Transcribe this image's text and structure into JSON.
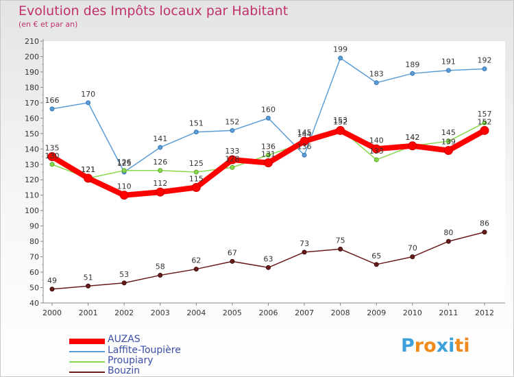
{
  "title": "Evolution des Impôts locaux par Habitant",
  "subtitle": "(en € et par an)",
  "logo": {
    "text": "Proxiti",
    "letter_colors": [
      "#3da0d8",
      "#f08a1c",
      "#f08a1c",
      "#3da0d8",
      "#3da0d8",
      "#f08a1c",
      "#f08a1c"
    ]
  },
  "chart_data": {
    "type": "line",
    "title": "Evolution des Impôts locaux par Habitant",
    "subtitle": "(en € et par an)",
    "xlabel": "",
    "ylabel": "",
    "x": [
      "2000",
      "2001",
      "2002",
      "2003",
      "2004",
      "2005",
      "2006",
      "2007",
      "2008",
      "2009",
      "2010",
      "2011",
      "2012"
    ],
    "ylim": [
      40,
      210
    ],
    "ytick_step": 10,
    "grid": false,
    "legend_position": "bottom-left",
    "series": [
      {
        "name": "AUZAS",
        "color": "#ff0000",
        "values": [
          135,
          121,
          110,
          112,
          115,
          133,
          131,
          145,
          152,
          140,
          142,
          139,
          152
        ],
        "labels": [
          "135",
          "121",
          "110",
          "112",
          "115",
          "133",
          "131",
          "145",
          "152",
          "140",
          "142",
          "139",
          "152"
        ]
      },
      {
        "name": "Laffite-Toupière",
        "color": "#5a9cd6",
        "values": [
          166,
          170,
          125,
          141,
          151,
          152,
          160,
          136,
          199,
          183,
          189,
          191,
          192
        ],
        "labels": [
          "166",
          "170",
          "125",
          "141",
          "151",
          "152",
          "160",
          "136",
          "199",
          "183",
          "189",
          "191",
          "192"
        ]
      },
      {
        "name": "Proupiary",
        "color": "#88d84c",
        "values": [
          130,
          121,
          126,
          126,
          125,
          128,
          136,
          144,
          153,
          133,
          142,
          145,
          157
        ],
        "labels": [
          "130",
          "121",
          "126",
          "126",
          "125",
          "128",
          "136",
          "144",
          "153",
          "133",
          "142",
          "145",
          "157"
        ]
      },
      {
        "name": "Bouzin",
        "color": "#6b1a1a",
        "values": [
          49,
          51,
          53,
          58,
          62,
          67,
          63,
          73,
          75,
          65,
          70,
          80,
          86
        ],
        "labels": [
          "49",
          "51",
          "53",
          "58",
          "62",
          "67",
          "63",
          "73",
          "75",
          "65",
          "70",
          "80",
          "86"
        ]
      }
    ]
  }
}
